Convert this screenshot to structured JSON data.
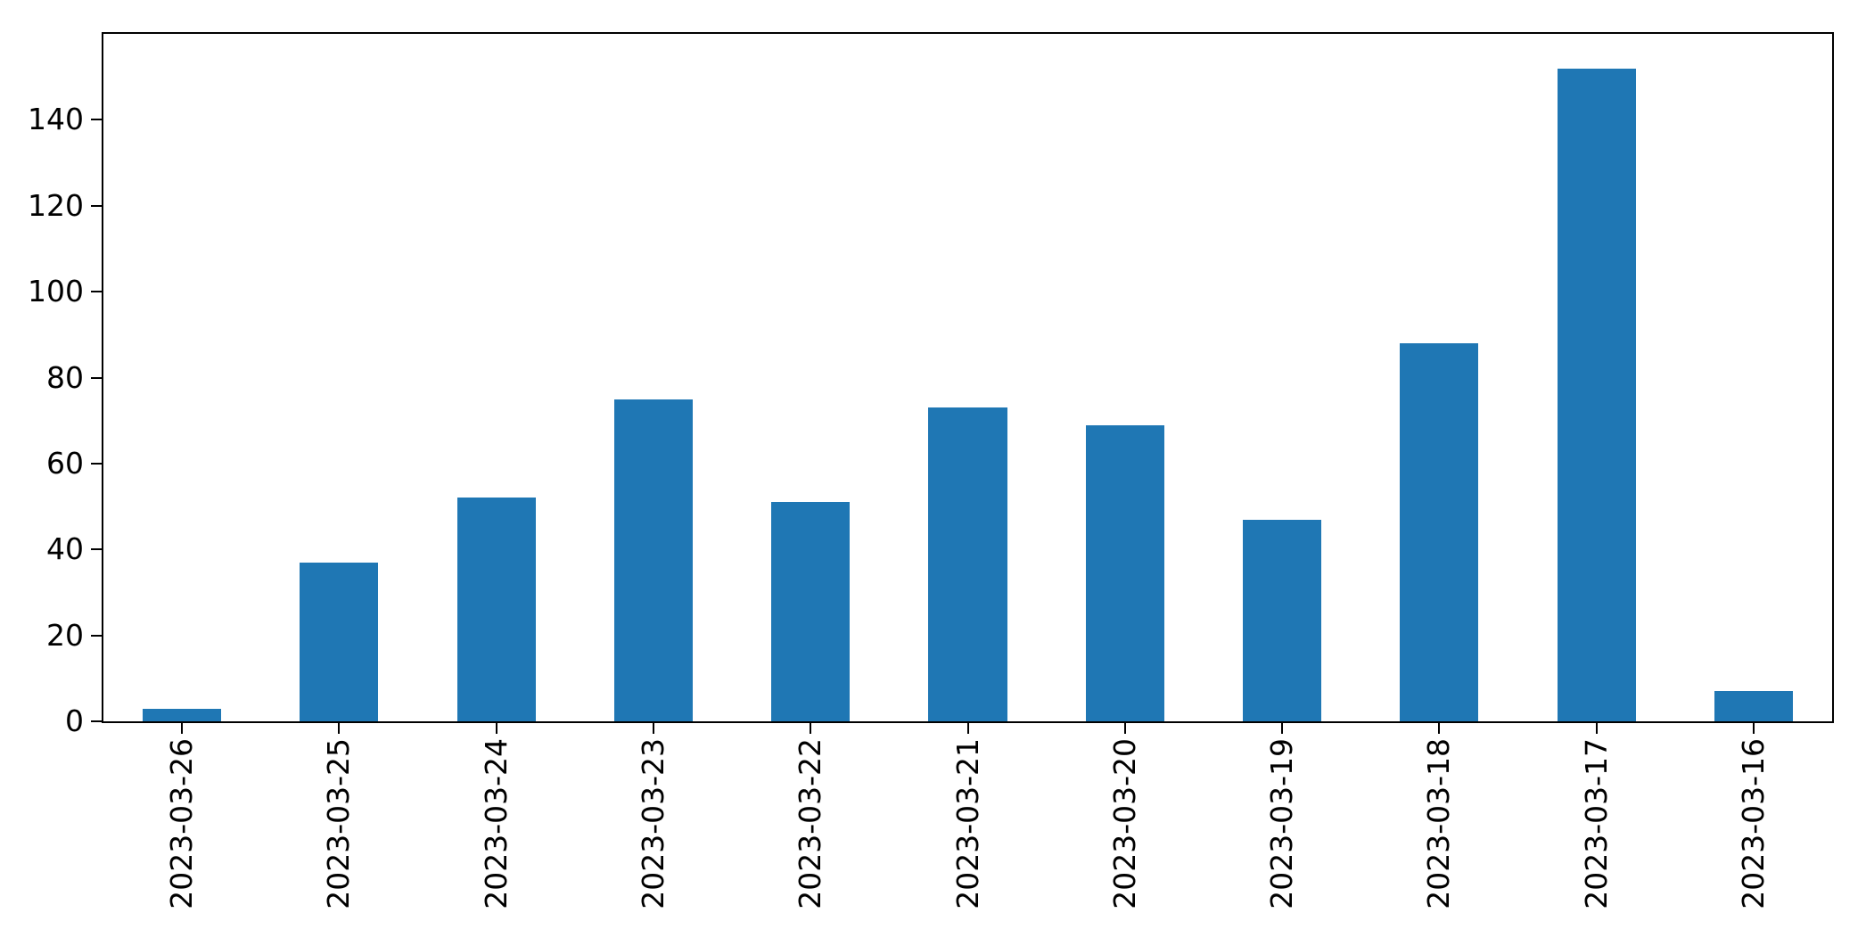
{
  "chart_data": {
    "type": "bar",
    "categories": [
      "2023-03-26",
      "2023-03-25",
      "2023-03-24",
      "2023-03-23",
      "2023-03-22",
      "2023-03-21",
      "2023-03-20",
      "2023-03-19",
      "2023-03-18",
      "2023-03-17",
      "2023-03-16"
    ],
    "values": [
      3,
      37,
      52,
      75,
      51,
      73,
      69,
      47,
      88,
      152,
      7
    ],
    "title": "",
    "xlabel": "",
    "ylabel": "",
    "ylim": [
      0,
      160
    ],
    "yticks": [
      0,
      20,
      40,
      60,
      80,
      100,
      120,
      140
    ],
    "x_tick_rotation": 90,
    "grid": false,
    "legend": null,
    "bar_color": "#1f77b4",
    "axis_color": "#000000",
    "background_color": "#ffffff"
  }
}
